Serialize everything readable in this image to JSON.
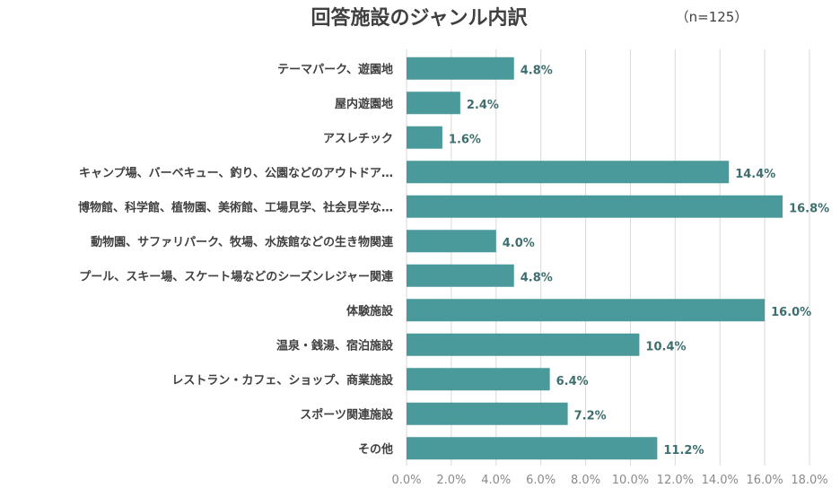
{
  "chart_data": {
    "type": "bar",
    "orientation": "horizontal",
    "title": "回答施設のジャンル内訳",
    "note": "（n=125）",
    "categories": [
      "テーマパーク、遊園地",
      "屋内遊園地",
      "アスレチック",
      "キャンプ場、バーベキュー、釣り、公園などのアウトドア…",
      "博物館、科学館、植物園、美術館、工場見学、社会見学な…",
      "動物園、サファリパーク、牧場、水族館などの生き物関連",
      "プール、スキー場、スケート場などのシーズンレジャー関連",
      "体験施設",
      "温泉・銭湯、宿泊施設",
      "レストラン・カフェ、ショップ、商業施設",
      "スポーツ関連施設",
      "その他"
    ],
    "values": [
      4.8,
      2.4,
      1.6,
      14.4,
      16.8,
      4.0,
      4.8,
      16.0,
      10.4,
      6.4,
      7.2,
      11.2
    ],
    "value_labels": [
      "4.8%",
      "2.4%",
      "1.6%",
      "14.4%",
      "16.8%",
      "4.0%",
      "4.8%",
      "16.0%",
      "10.4%",
      "6.4%",
      "7.2%",
      "11.2%"
    ],
    "xlim": [
      0,
      18
    ],
    "xticks": [
      "0.0%",
      "2.0%",
      "4.0%",
      "6.0%",
      "8.0%",
      "10.0%",
      "12.0%",
      "14.0%",
      "16.0%",
      "18.0%"
    ],
    "grid": true,
    "bar_color": "#4a9a9b",
    "label_color": "#3e6e6e"
  }
}
